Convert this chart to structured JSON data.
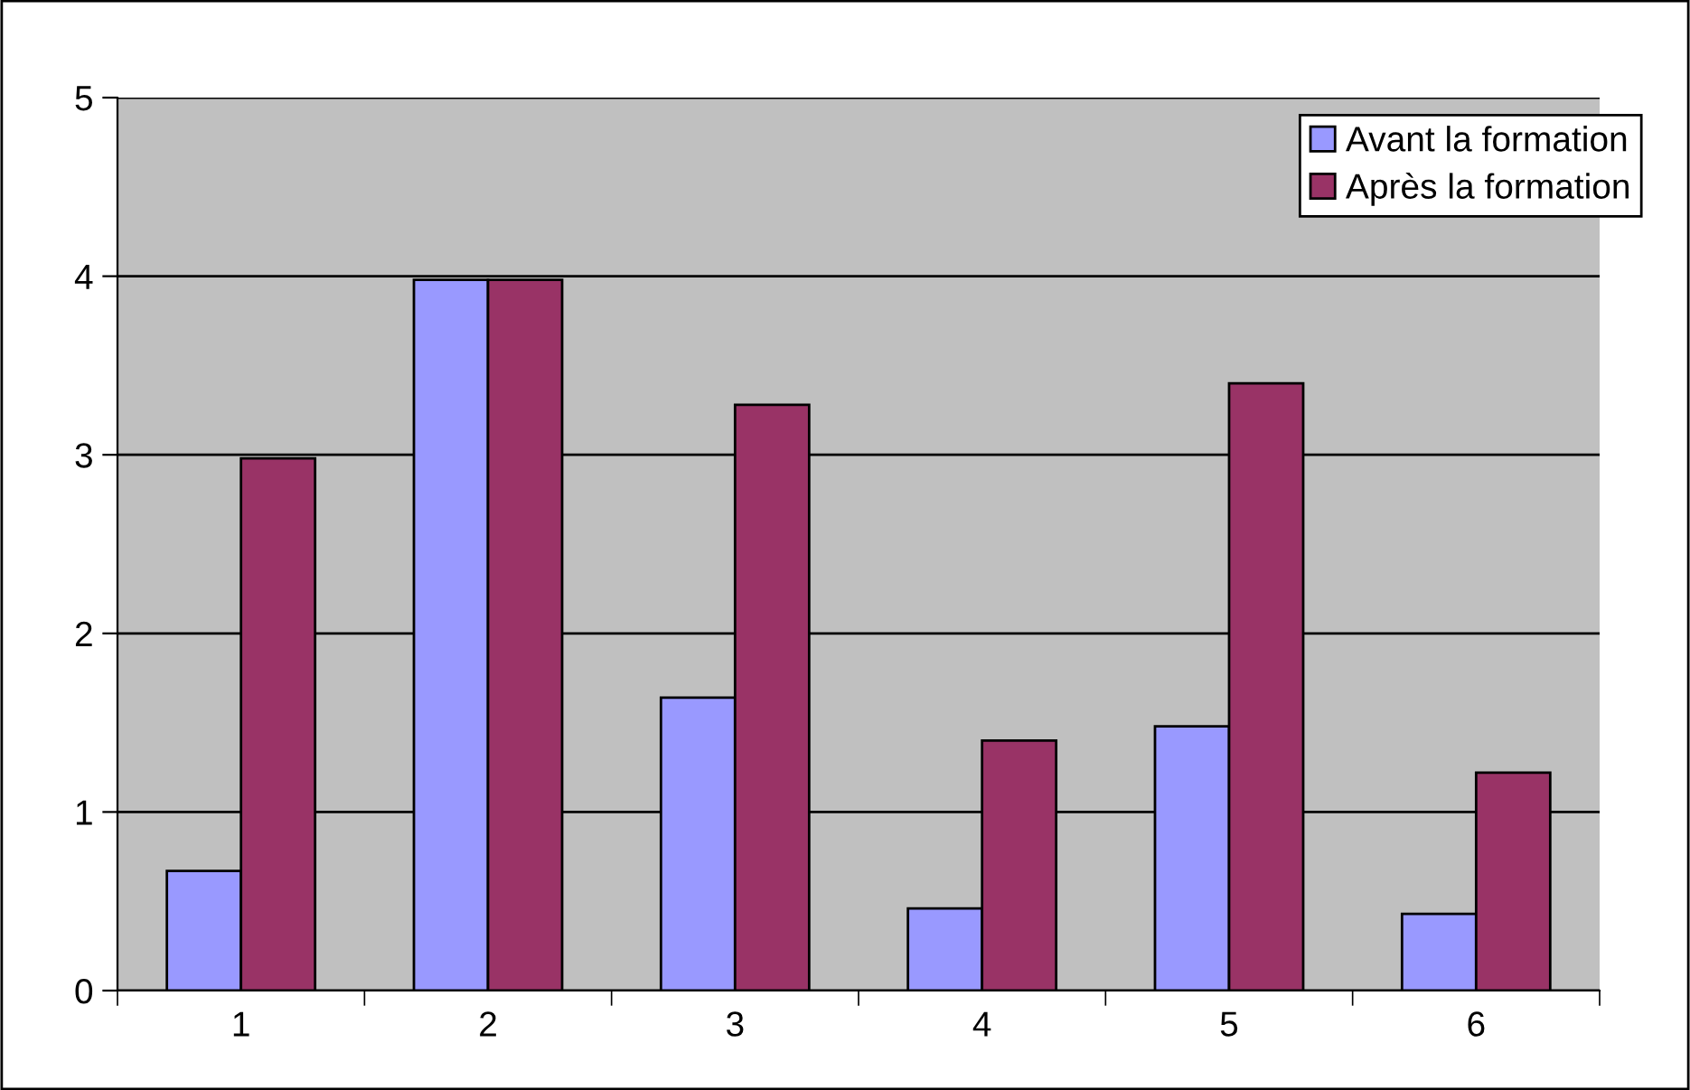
{
  "chart_data": {
    "type": "bar",
    "categories": [
      "1",
      "2",
      "3",
      "4",
      "5",
      "6"
    ],
    "series": [
      {
        "name": "Avant la formation",
        "color": "#9999ff",
        "values": [
          0.67,
          3.98,
          1.64,
          0.46,
          1.48,
          0.43
        ]
      },
      {
        "name": "Après la formation",
        "color": "#993366",
        "values": [
          2.98,
          3.98,
          3.28,
          1.4,
          3.4,
          1.22
        ]
      }
    ],
    "ylim": [
      0,
      5
    ],
    "yticks": [
      0,
      1,
      2,
      3,
      4,
      5
    ],
    "grid": "y",
    "legend": "top right"
  }
}
